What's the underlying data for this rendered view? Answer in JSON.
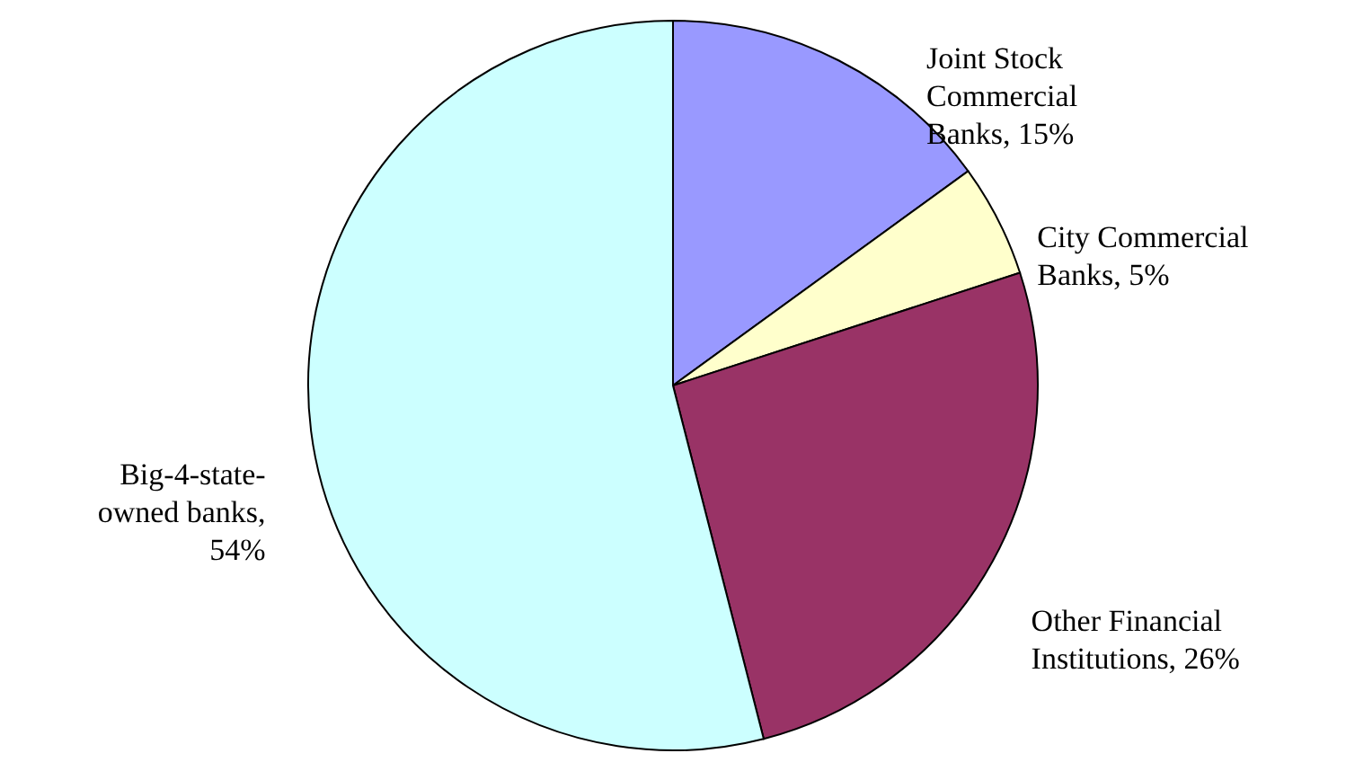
{
  "chart_data": {
    "type": "pie",
    "categories": [
      "Joint Stock Commercial Banks, 15%",
      "City Commercial Banks, 5%",
      "Other Financial Institutions, 26%",
      "Big-4-state-owned banks, 54%"
    ],
    "values": [
      15,
      5,
      26,
      54
    ],
    "colors": [
      "#9999ff",
      "#ffffcc",
      "#993366",
      "#ccffff"
    ]
  }
}
